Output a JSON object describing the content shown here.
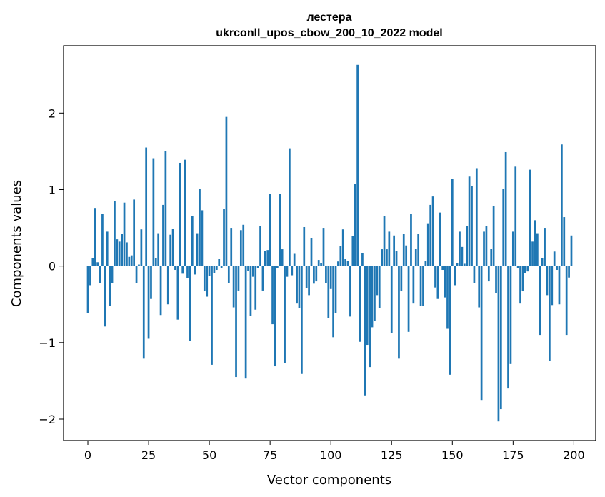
{
  "chart_data": {
    "type": "bar",
    "title": "лестера",
    "subtitle": "ukrconll_upos_cbow_200_10_2022 model",
    "xlabel": "Vector components",
    "ylabel": "Components values",
    "xlim": [
      -10,
      209
    ],
    "ylim": [
      -2.28,
      2.88
    ],
    "xticks": [
      0,
      25,
      50,
      75,
      100,
      125,
      150,
      175,
      200
    ],
    "xtick_labels": [
      "0",
      "25",
      "50",
      "75",
      "100",
      "125",
      "150",
      "175",
      "200"
    ],
    "yticks": [
      -2,
      -1,
      0,
      1,
      2
    ],
    "ytick_labels": [
      "−2",
      "−1",
      "0",
      "1",
      "2"
    ],
    "grid": false,
    "bar_color": "#1f77b4",
    "x": [
      0,
      1,
      2,
      3,
      4,
      5,
      6,
      7,
      8,
      9,
      10,
      11,
      12,
      13,
      14,
      15,
      16,
      17,
      18,
      19,
      20,
      21,
      22,
      23,
      24,
      25,
      26,
      27,
      28,
      29,
      30,
      31,
      32,
      33,
      34,
      35,
      36,
      37,
      38,
      39,
      40,
      41,
      42,
      43,
      44,
      45,
      46,
      47,
      48,
      49,
      50,
      51,
      52,
      53,
      54,
      55,
      56,
      57,
      58,
      59,
      60,
      61,
      62,
      63,
      64,
      65,
      66,
      67,
      68,
      69,
      70,
      71,
      72,
      73,
      74,
      75,
      76,
      77,
      78,
      79,
      80,
      81,
      82,
      83,
      84,
      85,
      86,
      87,
      88,
      89,
      90,
      91,
      92,
      93,
      94,
      95,
      96,
      97,
      98,
      99,
      100,
      101,
      102,
      103,
      104,
      105,
      106,
      107,
      108,
      109,
      110,
      111,
      112,
      113,
      114,
      115,
      116,
      117,
      118,
      119,
      120,
      121,
      122,
      123,
      124,
      125,
      126,
      127,
      128,
      129,
      130,
      131,
      132,
      133,
      134,
      135,
      136,
      137,
      138,
      139,
      140,
      141,
      142,
      143,
      144,
      145,
      146,
      147,
      148,
      149,
      150,
      151,
      152,
      153,
      154,
      155,
      156,
      157,
      158,
      159,
      160,
      161,
      162,
      163,
      164,
      165,
      166,
      167,
      168,
      169,
      170,
      171,
      172,
      173,
      174,
      175,
      176,
      177,
      178,
      179,
      180,
      181,
      182,
      183,
      184,
      185,
      186,
      187,
      188,
      189,
      190,
      191,
      192,
      193,
      194,
      195,
      196,
      197,
      198,
      199
    ],
    "values": [
      -0.61,
      -0.25,
      0.1,
      0.76,
      0.05,
      -0.22,
      0.68,
      -0.79,
      0.45,
      -0.52,
      -0.22,
      0.85,
      0.35,
      0.32,
      0.42,
      0.83,
      0.31,
      0.12,
      0.14,
      0.87,
      -0.22,
      0.02,
      0.48,
      -1.21,
      1.55,
      -0.95,
      -0.43,
      1.41,
      0.1,
      0.43,
      -0.64,
      0.8,
      1.5,
      -0.5,
      0.41,
      0.49,
      -0.05,
      -0.7,
      1.35,
      -0.1,
      1.39,
      -0.16,
      -0.98,
      0.65,
      -0.11,
      0.43,
      1.01,
      0.73,
      -0.33,
      -0.4,
      -0.13,
      -1.29,
      -0.09,
      -0.05,
      0.09,
      -0.03,
      0.75,
      1.95,
      -0.22,
      0.5,
      -0.54,
      -1.45,
      -0.32,
      0.47,
      0.54,
      -1.47,
      -0.06,
      -0.65,
      -0.14,
      -0.57,
      -0.03,
      0.52,
      -0.32,
      0.2,
      0.21,
      0.94,
      -0.76,
      -1.31,
      -0.03,
      0.94,
      0.22,
      -1.27,
      -0.14,
      1.54,
      -0.12,
      0.16,
      -0.49,
      -0.55,
      -1.41,
      0.51,
      -0.29,
      -0.38,
      0.37,
      -0.23,
      -0.2,
      0.08,
      0.04,
      0.5,
      -0.22,
      -0.68,
      -0.3,
      -0.93,
      -0.61,
      0.06,
      0.26,
      0.48,
      0.09,
      0.07,
      -0.66,
      0.39,
      1.07,
      2.63,
      -0.99,
      0.17,
      -1.69,
      -1.03,
      -1.32,
      -0.8,
      -0.72,
      -0.38,
      -0.55,
      0.22,
      0.65,
      0.22,
      0.45,
      -0.88,
      0.4,
      0.2,
      -1.21,
      -0.33,
      0.42,
      0.27,
      -0.86,
      0.68,
      -0.49,
      0.23,
      0.42,
      -0.52,
      -0.52,
      0.07,
      0.56,
      0.8,
      0.91,
      -0.28,
      -0.43,
      0.7,
      -0.05,
      -0.41,
      -0.82,
      -1.42,
      1.14,
      -0.25,
      0.04,
      0.45,
      0.25,
      0.03,
      0.52,
      1.17,
      1.05,
      -0.22,
      1.28,
      -0.54,
      -1.75,
      0.45,
      0.52,
      -0.2,
      0.23,
      0.79,
      -0.35,
      -2.03,
      -1.87,
      1.01,
      1.49,
      -1.6,
      -1.28,
      0.45,
      1.3,
      -0.03,
      -0.49,
      -0.33,
      -0.09,
      -0.07,
      1.26,
      0.32,
      0.6,
      0.43,
      -0.9,
      0.1,
      0.5,
      -0.38,
      -1.24,
      -0.51,
      0.19,
      -0.05,
      -0.5,
      1.59,
      0.64,
      -0.9,
      -0.15,
      0.4
    ]
  }
}
